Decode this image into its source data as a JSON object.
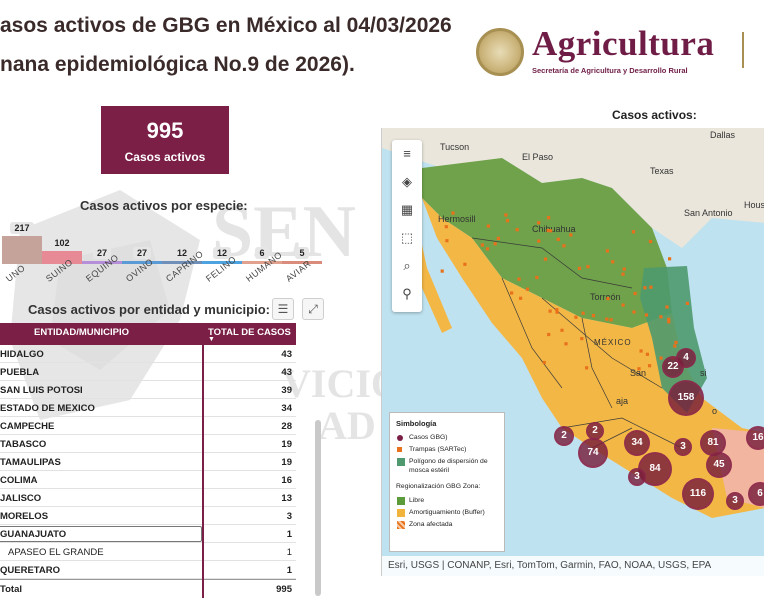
{
  "header": {
    "title_line1": "asos activos de GBG en México al 04/03/2026",
    "title_line2": "nana epidemiológica No.9 de 2026)."
  },
  "logo": {
    "word": "Agricultura",
    "subtitle": "Secretaría de Agricultura y Desarrollo Rural"
  },
  "kpi": {
    "value": "995",
    "label": "Casos activos"
  },
  "species": {
    "title": "Casos activos por especie:",
    "items": [
      {
        "name": "UNO",
        "value": "217",
        "color": "#c6a39a",
        "level": 217
      },
      {
        "name": "SUINO",
        "value": "102",
        "color": "#e78a95",
        "level": 102
      },
      {
        "name": "EQUINO",
        "value": "27",
        "color": "#b58fd8",
        "level": 27
      },
      {
        "name": "OVINO",
        "value": "27",
        "color": "#5b9bd5",
        "level": 27
      },
      {
        "name": "CAPRINO",
        "value": "12",
        "color": "#6f8fb8",
        "level": 12
      },
      {
        "name": "FELINO",
        "value": "12",
        "color": "#4da3e0",
        "level": 12
      },
      {
        "name": "HUMANO",
        "value": "6",
        "color": "#e0a28f",
        "level": 6
      },
      {
        "name": "AVIAR",
        "value": "5",
        "color": "#d98b7c",
        "level": 5
      }
    ]
  },
  "table": {
    "title": "Casos activos por entidad y municipio:",
    "col_entity": "ENTIDAD/MUNICIPIO",
    "col_total": "TOTAL DE CASOS",
    "rows": [
      {
        "entity": "HIDALGO",
        "total": "43"
      },
      {
        "entity": "PUEBLA",
        "total": "43"
      },
      {
        "entity": "SAN LUIS POTOSI",
        "total": "39"
      },
      {
        "entity": "ESTADO DE MEXICO",
        "total": "34"
      },
      {
        "entity": "CAMPECHE",
        "total": "28"
      },
      {
        "entity": "TABASCO",
        "total": "19"
      },
      {
        "entity": "TAMAULIPAS",
        "total": "19"
      },
      {
        "entity": "COLIMA",
        "total": "16"
      },
      {
        "entity": "JALISCO",
        "total": "13"
      },
      {
        "entity": "MORELOS",
        "total": "3"
      },
      {
        "entity": "GUANAJUATO",
        "total": "1"
      },
      {
        "entity": "APASEO EL GRANDE",
        "total": "1"
      },
      {
        "entity": "QUERETARO",
        "total": "1"
      },
      {
        "entity": "Total",
        "total": "995"
      }
    ]
  },
  "map": {
    "title": "Casos activos:",
    "cities": [
      "Dallas",
      "Tucson",
      "El Paso",
      "Texas",
      "San Antonio",
      "Hous",
      "Hermosill",
      "Chihuahua",
      "Torreón",
      "MÉXICO",
      "San",
      "si",
      "aja",
      "o"
    ],
    "clusters": [
      "158",
      "84",
      "74",
      "34",
      "81",
      "45",
      "116",
      "22",
      "4",
      "2",
      "2",
      "3",
      "3",
      "3",
      "16",
      "6"
    ],
    "legend": {
      "title": "Simbología",
      "cases": "Casos GBG)",
      "traps": "Trampas (SARTec)",
      "polygon": "Polígono de dispersión de mosca estéril",
      "zone_title": "Regionalización GBG Zona:",
      "libre": "Libre",
      "buffer": "Amortiguamiento (Buffer)",
      "afectada": "Zona afectada"
    },
    "attribution": "Esri, USGS | CONANP, Esri, TomTom, Garmin, FAO, NOAA, USGS, EPA"
  },
  "watermark": {
    "text1": "SEN",
    "text2": "VICIO",
    "text3": "AD Y"
  },
  "colors": {
    "brand": "#7b1f47",
    "gold": "#a89053",
    "libre": "#5c9b3a",
    "buffer": "#f0b43c",
    "polygon": "#4e9a6e",
    "trap": "#e8711b"
  }
}
